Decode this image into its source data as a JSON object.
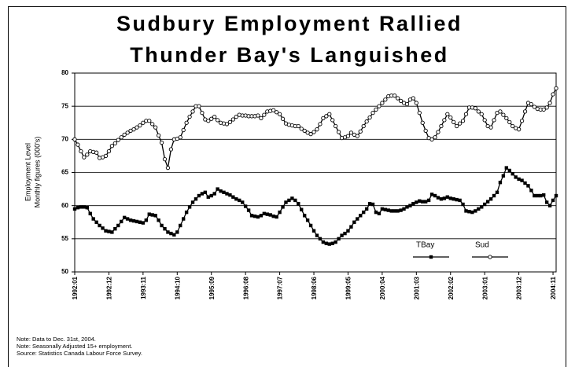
{
  "chart_data": {
    "type": "line",
    "title": [
      "Sudbury Employment Rallied",
      "Thunder Bay's Languished"
    ],
    "ylabel": [
      "Employment Level",
      "Monthly figures (000's)"
    ],
    "notes": [
      "Note: Data to Dec. 31st, 2004.",
      "Note: Seasonally Adjusted 15+ employment.",
      "Source: Statistics Canada Labour Force Survey."
    ],
    "categories": [
      "1992:01",
      null,
      null,
      null,
      null,
      null,
      null,
      null,
      null,
      null,
      null,
      "1992:12",
      null,
      null,
      null,
      null,
      null,
      null,
      null,
      null,
      null,
      null,
      "1993:11",
      null,
      null,
      null,
      null,
      null,
      null,
      null,
      null,
      null,
      null,
      "1994:10",
      null,
      null,
      null,
      null,
      null,
      null,
      null,
      null,
      null,
      null,
      "1995:09",
      null,
      null,
      null,
      null,
      null,
      null,
      null,
      null,
      null,
      null,
      "1996:08",
      null,
      null,
      null,
      null,
      null,
      null,
      null,
      null,
      null,
      null,
      "1997:07",
      null,
      null,
      null,
      null,
      null,
      null,
      null,
      null,
      null,
      null,
      "1998:06",
      null,
      null,
      null,
      null,
      null,
      null,
      null,
      null,
      null,
      null,
      "1999:05",
      null,
      null,
      null,
      null,
      null,
      null,
      null,
      null,
      null,
      null,
      "2000:04",
      null,
      null,
      null,
      null,
      null,
      null,
      null,
      null,
      null,
      null,
      "2001:03",
      null,
      null,
      null,
      null,
      null,
      null,
      null,
      null,
      null,
      null,
      "2002:02",
      null,
      null,
      null,
      null,
      null,
      null,
      null,
      null,
      null,
      null,
      "2003:01",
      null,
      null,
      null,
      null,
      null,
      null,
      null,
      null,
      null,
      null,
      "2003:12",
      null,
      null,
      null,
      null,
      null,
      null,
      null,
      null,
      null,
      null,
      "2004:11",
      null
    ],
    "series": [
      {
        "name": "TBay",
        "color": "#000000",
        "marker": "square",
        "values": [
          59.5,
          59.7,
          59.8,
          59.8,
          59.7,
          58.8,
          58.0,
          57.5,
          57.0,
          56.6,
          56.2,
          56.1,
          56.0,
          56.5,
          57.0,
          57.6,
          58.2,
          58.0,
          57.8,
          57.7,
          57.6,
          57.5,
          57.4,
          57.8,
          58.7,
          58.6,
          58.5,
          57.8,
          57.0,
          56.5,
          56.0,
          55.8,
          55.6,
          56.0,
          57.0,
          58.0,
          59.0,
          59.8,
          60.5,
          61.0,
          61.5,
          61.8,
          62.0,
          61.3,
          61.5,
          61.8,
          62.5,
          62.2,
          62.0,
          61.8,
          61.6,
          61.3,
          61.0,
          60.8,
          60.5,
          59.9,
          59.3,
          58.5,
          58.4,
          58.3,
          58.5,
          58.8,
          58.7,
          58.6,
          58.4,
          58.3,
          59.0,
          59.8,
          60.5,
          60.8,
          61.1,
          60.8,
          60.3,
          59.4,
          58.5,
          57.8,
          57.0,
          56.2,
          55.5,
          55.0,
          54.5,
          54.3,
          54.2,
          54.3,
          54.5,
          55.0,
          55.5,
          55.8,
          56.2,
          56.8,
          57.5,
          58.0,
          58.5,
          59.0,
          59.5,
          60.3,
          60.2,
          59.0,
          58.8,
          59.5,
          59.4,
          59.3,
          59.2,
          59.2,
          59.2,
          59.3,
          59.5,
          59.8,
          60.0,
          60.3,
          60.5,
          60.7,
          60.6,
          60.6,
          60.8,
          61.7,
          61.5,
          61.2,
          61.0,
          61.1,
          61.3,
          61.1,
          61.0,
          60.9,
          60.8,
          60.2,
          59.2,
          59.1,
          59.0,
          59.2,
          59.5,
          59.8,
          60.2,
          60.6,
          61.0,
          61.5,
          62.0,
          63.5,
          64.5,
          65.7,
          65.3,
          64.8,
          64.3,
          64.0,
          63.8,
          63.4,
          63.0,
          62.3,
          61.5,
          61.5,
          61.5,
          61.6,
          60.5,
          60.0,
          60.8,
          61.5
        ]
      },
      {
        "name": "Sud",
        "color": "#000000",
        "marker": "circle",
        "values": [
          70.0,
          69.2,
          68.2,
          67.3,
          67.7,
          68.2,
          68.1,
          68.0,
          67.2,
          67.3,
          67.5,
          68.2,
          69.0,
          69.4,
          69.9,
          70.3,
          70.7,
          71.0,
          71.3,
          71.5,
          71.8,
          72.1,
          72.5,
          72.8,
          72.8,
          72.3,
          71.8,
          70.6,
          69.5,
          67.0,
          65.7,
          68.5,
          70.0,
          70.1,
          70.3,
          71.4,
          72.5,
          73.4,
          74.2,
          75.0,
          75.0,
          74.0,
          73.0,
          72.8,
          73.1,
          73.4,
          72.9,
          72.5,
          72.4,
          72.3,
          72.6,
          73.0,
          73.4,
          73.7,
          73.6,
          73.6,
          73.5,
          73.5,
          73.5,
          73.6,
          73.2,
          73.7,
          74.2,
          74.3,
          74.4,
          74.1,
          73.8,
          73.1,
          72.4,
          72.2,
          72.1,
          72.0,
          72.0,
          71.6,
          71.3,
          71.0,
          70.8,
          71.1,
          71.5,
          72.3,
          73.2,
          73.5,
          73.8,
          72.9,
          72.0,
          71.1,
          70.2,
          70.3,
          70.5,
          71.0,
          70.7,
          70.5,
          71.2,
          72.0,
          72.7,
          73.3,
          74.0,
          74.5,
          75.0,
          75.5,
          76.0,
          76.5,
          76.6,
          76.6,
          76.2,
          75.8,
          75.5,
          75.3,
          76.0,
          76.2,
          75.5,
          74.0,
          72.5,
          71.3,
          70.2,
          70.0,
          70.3,
          71.1,
          72.0,
          72.9,
          73.8,
          73.3,
          72.6,
          72.0,
          72.4,
          72.8,
          73.8,
          74.8,
          74.8,
          74.7,
          74.2,
          73.8,
          72.9,
          72.0,
          71.8,
          72.9,
          74.0,
          74.2,
          73.7,
          73.2,
          72.6,
          72.0,
          71.7,
          71.5,
          72.8,
          74.2,
          75.5,
          75.3,
          74.9,
          74.6,
          74.5,
          74.5,
          74.8,
          75.5,
          76.8,
          77.7
        ]
      }
    ],
    "ylim": [
      50,
      80
    ],
    "yticks": [
      50,
      55,
      60,
      65,
      70,
      75,
      80
    ],
    "grid": true,
    "legend": "lower right"
  }
}
